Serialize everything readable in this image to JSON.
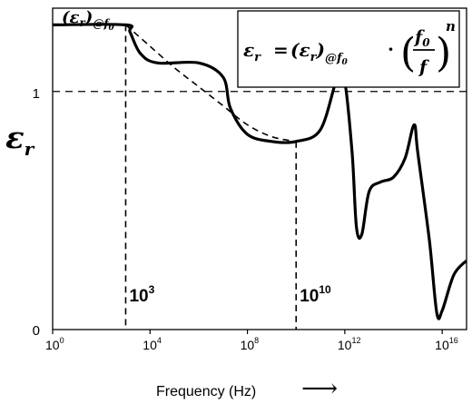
{
  "chart_data": {
    "type": "line",
    "x_scale": "log10",
    "xlim": [
      1,
      1e+17
    ],
    "ylim": [
      0,
      1.35
    ],
    "grid": false,
    "x_ticks": [
      {
        "value": 1,
        "base": "10",
        "exp": "0"
      },
      {
        "value": 10000.0,
        "base": "10",
        "exp": "4"
      },
      {
        "value": 100000000.0,
        "base": "10",
        "exp": "8"
      },
      {
        "value": 1000000000000.0,
        "base": "10",
        "exp": "12"
      },
      {
        "value": 1e+16,
        "base": "10",
        "exp": "16"
      }
    ],
    "y_ticks": [
      {
        "value": 0,
        "label": "0"
      },
      {
        "value": 1,
        "label": "1"
      }
    ],
    "xlabel": "Frequency (Hz)",
    "ylabel": "ε",
    "ylabel_sub": "r",
    "series": [
      {
        "style": "solid",
        "points": [
          [
            1,
            1.28
          ],
          [
            1000.0,
            1.28
          ],
          [
            1500.0,
            1.25
          ],
          [
            4000.0,
            1.16
          ],
          [
            20000.0,
            1.12
          ],
          [
            1000000.0,
            1.12
          ],
          [
            10000000.0,
            1.06
          ],
          [
            20000000.0,
            0.93
          ],
          [
            100000000.0,
            0.82
          ],
          [
            1000000000.0,
            0.79
          ],
          [
            10000000000.0,
            0.79
          ],
          [
            100000000000.0,
            0.84
          ],
          [
            500000000000.0,
            1.06
          ],
          [
            1000000000000.0,
            1.04
          ],
          [
            2000000000000.0,
            0.74
          ],
          [
            3000000000000.0,
            0.43
          ],
          [
            5000000000000.0,
            0.4
          ],
          [
            10000000000000.0,
            0.58
          ],
          [
            30000000000000.0,
            0.62
          ],
          [
            100000000000000.0,
            0.64
          ],
          [
            300000000000000.0,
            0.72
          ],
          [
            700000000000000.0,
            0.86
          ],
          [
            1000000000000000.0,
            0.74
          ],
          [
            3000000000000000.0,
            0.37
          ],
          [
            6000000000000000.0,
            0.07
          ],
          [
            1e+16,
            0.08
          ],
          [
            3e+16,
            0.23
          ],
          [
            1e+17,
            0.29
          ]
        ]
      },
      {
        "style": "dashed",
        "points": [
          [
            1000.0,
            1.28
          ],
          [
            10000.0,
            1.19
          ],
          [
            100000.0,
            1.1
          ],
          [
            1000000.0,
            1.02
          ],
          [
            10000000.0,
            0.94
          ],
          [
            100000000.0,
            0.86
          ],
          [
            1000000000.0,
            0.81
          ],
          [
            10000000000.0,
            0.79
          ]
        ]
      }
    ],
    "reference_line": {
      "y": 1,
      "style": "dashed"
    },
    "markers": [
      {
        "x": 1000.0,
        "base": "10",
        "exp": "3"
      },
      {
        "x": 10000000000.0,
        "base": "10",
        "exp": "10"
      }
    ],
    "annotations": {
      "start_label": {
        "base": "(ε",
        "sub": "r",
        "close": ")",
        "at": "@",
        "f": "f",
        "f_sub": "0"
      },
      "formula": {
        "lhs": "ε",
        "lhs_sub": "r",
        "eq": "=",
        "term": "(ε",
        "term_sub": "r",
        "term_close": ")",
        "at": "@f",
        "at_sub": "0",
        "dot": "·",
        "num": "f",
        "num_sub": "0",
        "den": "f",
        "power": "n"
      }
    },
    "arrow": "⟶"
  }
}
